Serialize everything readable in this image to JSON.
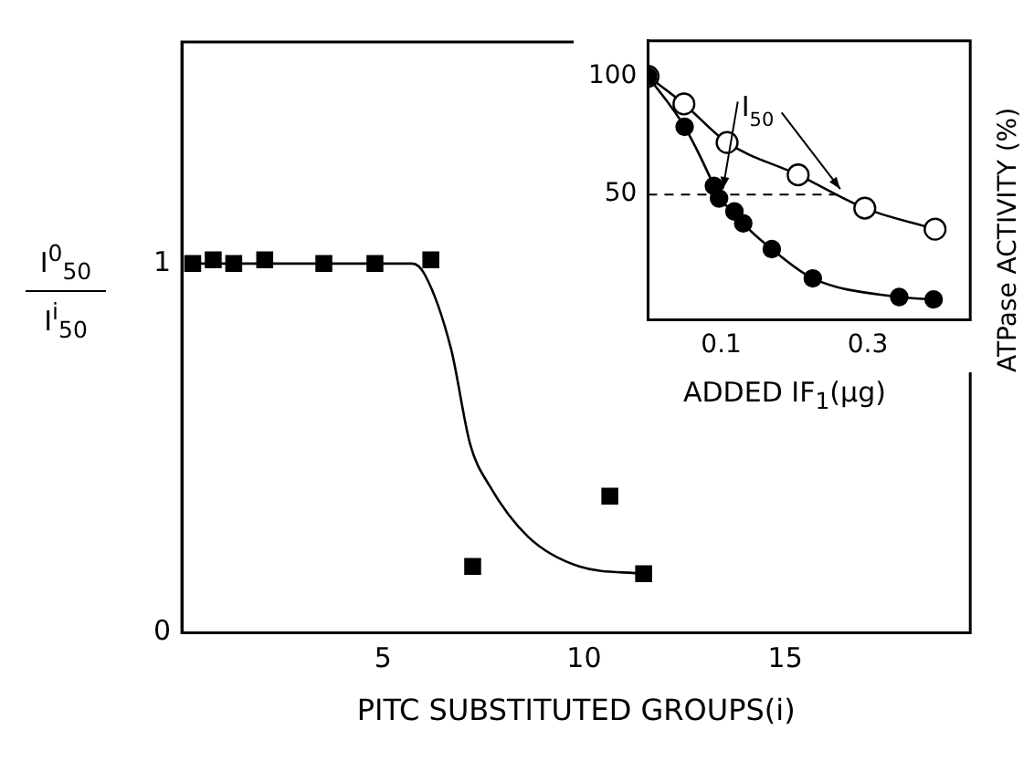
{
  "chart_data": [
    {
      "type": "scatter",
      "xlabel": "PITC SUBSTITUTED GROUPS(i)",
      "ylabel": "I$^{0}$$_{50}$ I$^{i}$$_{50}$",
      "xlim": [
        0,
        19.6
      ],
      "ylim": [
        0,
        1.6
      ],
      "xticks": [
        5,
        10,
        15
      ],
      "yticks": [
        0,
        1
      ],
      "grid": false,
      "legend": false,
      "series": [
        {
          "marker": "square",
          "color": "#000000",
          "x": [
            0.27,
            0.78,
            1.29,
            2.06,
            3.53,
            4.8,
            6.19,
            7.23,
            10.64,
            11.48
          ],
          "values": [
            1.0,
            1.01,
            1.0,
            1.01,
            1.0,
            1.0,
            1.01,
            0.18,
            0.37,
            0.16
          ]
        },
        {
          "type": "line",
          "marker": "none",
          "color": "#000000",
          "x": [
            0.2,
            2,
            4,
            5.73,
            6.04,
            6.69,
            7.17,
            7.64,
            8.61,
            9.88,
            11.48
          ],
          "values": [
            1.0,
            1.0,
            1.0,
            1.0,
            0.97,
            0.77,
            0.51,
            0.4,
            0.26,
            0.18,
            0.16
          ]
        }
      ]
    },
    {
      "type": "line",
      "xlabel": "ADDED IF$_{1}$(μg)",
      "ylabel": "ATPase ACTIVITY (%)",
      "xlim": [
        0,
        0.44
      ],
      "ylim": [
        -3,
        115
      ],
      "xticks": [
        0.1,
        0.3
      ],
      "yticks": [
        50,
        100
      ],
      "grid": false,
      "legend": false,
      "marker": "circle",
      "annotations": [
        {
          "text": "I$_{50}$",
          "x": 0.27,
          "y": 50
        }
      ],
      "ref_lines": [
        {
          "axis": "y",
          "value": 50,
          "line_style": "dashed"
        }
      ],
      "series": [
        {
          "color": "#ffffff",
          "x": [
            0,
            0.049,
            0.108,
            0.205,
            0.296,
            0.392
          ],
          "values": [
            100,
            88.3,
            72,
            58.3,
            44.2,
            35.3
          ]
        },
        {
          "color": "#000000",
          "x": [
            0,
            0.05,
            0.09,
            0.097,
            0.118,
            0.13,
            0.169,
            0.225,
            0.343,
            0.39
          ],
          "values": [
            100,
            78.6,
            53.6,
            48.3,
            42.8,
            37.8,
            26.9,
            14.5,
            6.6,
            5.6
          ]
        }
      ]
    }
  ]
}
